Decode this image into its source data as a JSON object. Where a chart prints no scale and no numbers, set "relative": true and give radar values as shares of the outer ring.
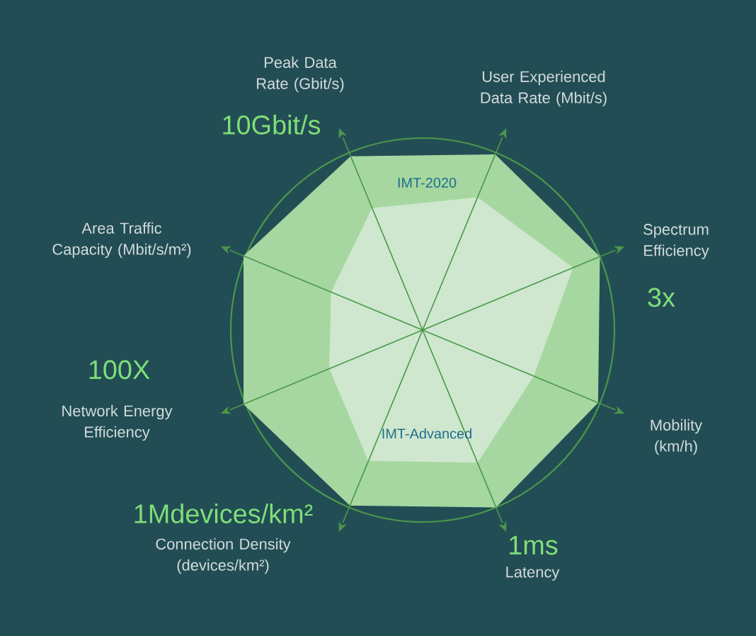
{
  "chart_data": {
    "type": "radar",
    "relative": true,
    "categories": [
      "User Experienced Data Rate (Mbit/s)",
      "Spectrum Efficiency",
      "Mobility (km/h)",
      "Latency",
      "Connection Density (devices/km²)",
      "Network Energy Efficiency",
      "Area Traffic Capacity (Mbit/s/m²)",
      "Peak Data Rate (Gbit/s)"
    ],
    "series": [
      {
        "name": "IMT-2020",
        "color": "#a6d7a0",
        "values": [
          0.98,
          0.99,
          0.98,
          0.99,
          0.98,
          1,
          1,
          0.97
        ]
      },
      {
        "name": "IMT-Advanced",
        "color": "#cfe7cf",
        "values": [
          0.74,
          0.84,
          0.62,
          0.74,
          0.73,
          0.52,
          0.51,
          0.68
        ]
      }
    ],
    "annotations": [
      "10Gbit/s",
      "3x",
      "1ms",
      "1Mdevices/km²",
      "100X"
    ]
  }
}
